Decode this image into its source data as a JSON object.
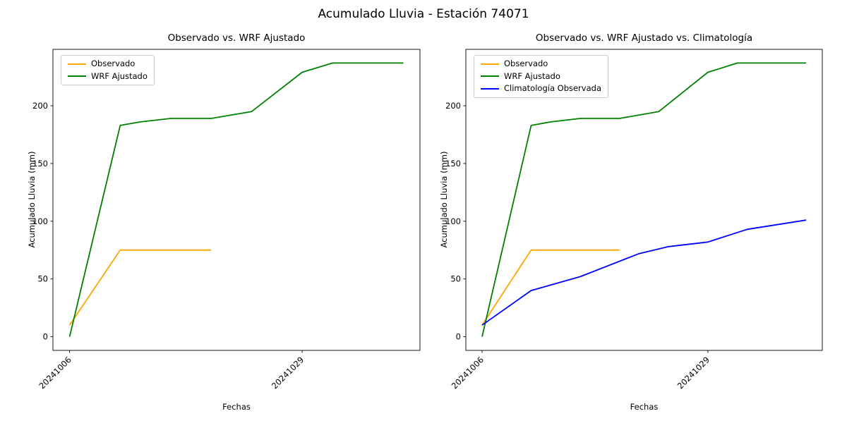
{
  "figure": {
    "title": "Acumulado Lluvia - Estación 74071",
    "background_color": "#ffffff"
  },
  "chart_data": [
    {
      "type": "line",
      "title": "Observado vs. WRF Ajustado",
      "xlabel": "Fechas",
      "ylabel": "Acumulado Lluvia (mm)",
      "x_unit": "days since 2024-10-06",
      "xlim": [
        -1.65,
        34.65
      ],
      "ylim": [
        -11.85,
        248.85
      ],
      "yticks": [
        0,
        50,
        100,
        150,
        200
      ],
      "xticks": [
        {
          "pos": 0,
          "label": "20241006"
        },
        {
          "pos": 23,
          "label": "20241029"
        }
      ],
      "grid": false,
      "legend_position": "upper left",
      "series": [
        {
          "name": "Observado",
          "color": "#ffa500",
          "x": [
            0,
            5,
            14
          ],
          "y": [
            10,
            75,
            75
          ]
        },
        {
          "name": "WRF Ajustado",
          "color": "#008000",
          "x": [
            0,
            5,
            7,
            10,
            14,
            18,
            23,
            26,
            33
          ],
          "y": [
            0,
            183,
            186,
            189,
            189,
            195,
            229,
            237,
            237
          ]
        }
      ]
    },
    {
      "type": "line",
      "title": "Observado vs. WRF Ajustado vs. Climatología",
      "xlabel": "Fechas",
      "ylabel": "Acumulado Lluvia (mm)",
      "x_unit": "days since 2024-10-06",
      "xlim": [
        -1.65,
        34.65
      ],
      "ylim": [
        -11.85,
        248.85
      ],
      "yticks": [
        0,
        50,
        100,
        150,
        200
      ],
      "xticks": [
        {
          "pos": 0,
          "label": "20241006"
        },
        {
          "pos": 23,
          "label": "20241029"
        }
      ],
      "grid": false,
      "legend_position": "upper left",
      "series": [
        {
          "name": "Observado",
          "color": "#ffa500",
          "x": [
            0,
            5,
            14
          ],
          "y": [
            10,
            75,
            75
          ]
        },
        {
          "name": "WRF Ajustado",
          "color": "#008000",
          "x": [
            0,
            5,
            7,
            10,
            14,
            18,
            23,
            26,
            33
          ],
          "y": [
            0,
            183,
            186,
            189,
            189,
            195,
            229,
            237,
            237
          ]
        },
        {
          "name": "Climatología Observada",
          "color": "#0000ff",
          "x": [
            0,
            5,
            10,
            16,
            19,
            23,
            27,
            33
          ],
          "y": [
            10,
            40,
            52,
            72,
            78,
            82,
            93,
            101
          ]
        }
      ]
    }
  ]
}
